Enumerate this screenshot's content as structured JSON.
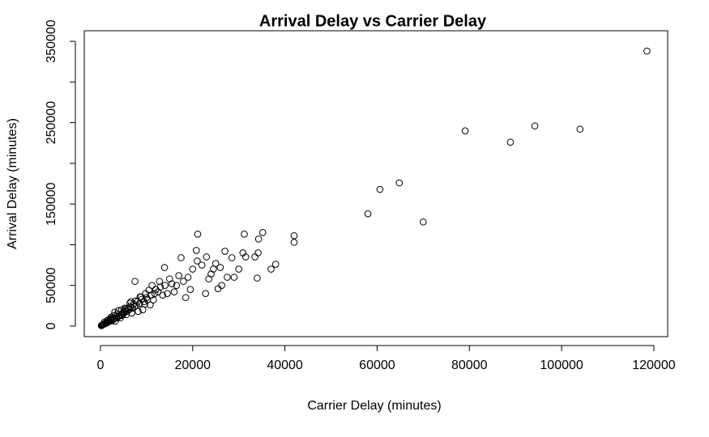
{
  "chart_data": {
    "type": "scatter",
    "title": "Arrival Delay vs Carrier Delay",
    "x_label": "Carrier Delay (minutes)",
    "y_label": "Arrival Delay (minutes)",
    "xlim": [
      -3500,
      123000
    ],
    "ylim": [
      -13000,
      363000
    ],
    "xticks": [
      0,
      20000,
      40000,
      60000,
      80000,
      100000,
      120000
    ],
    "yticks": [
      0,
      50000,
      {
        "value": 100000,
        "label": null
      },
      150000,
      {
        "value": 200000,
        "label": null
      },
      250000,
      {
        "value": 300000,
        "label": null
      },
      350000
    ],
    "color": "#000000",
    "x": [
      118500,
      104000,
      94200,
      88900,
      79100,
      70000,
      64800,
      60600,
      58000,
      42000,
      42000,
      35200,
      34300,
      31200,
      21100,
      38000,
      37000,
      34000,
      34200,
      33500,
      30900,
      31500,
      27000,
      28500,
      25000,
      23000,
      20800,
      21000,
      26300,
      22800,
      30000,
      29000,
      24000,
      17500,
      13900,
      7500,
      12000,
      19000,
      18000,
      16500,
      15000,
      14500,
      13000,
      12500,
      11000,
      10500,
      10000,
      9500,
      9000,
      8500,
      8000,
      7800,
      7200,
      7000,
      6500,
      6200,
      6000,
      5800,
      5500,
      5200,
      5000,
      4800,
      4500,
      4200,
      4000,
      3800,
      3500,
      3300,
      3000,
      2800,
      2600,
      2400,
      2200,
      2000,
      1800,
      1600,
      1400,
      1200,
      1000,
      800,
      600,
      500,
      400,
      300,
      200,
      22000,
      20000,
      19500,
      18500,
      17000,
      16000,
      15500,
      14000,
      13500,
      12800,
      11500,
      11200,
      10800,
      9800,
      9200,
      8800,
      8200,
      7600,
      6800,
      6400,
      5600,
      5300,
      4600,
      4300,
      3700,
      3200,
      2900,
      2500,
      2100,
      1700,
      1300,
      900,
      700,
      1500,
      2300,
      3100,
      3900,
      4700,
      5400,
      6600,
      7400,
      8600,
      9600,
      10200,
      11800,
      24500,
      26000,
      27500,
      23500,
      25500
    ],
    "y": [
      338000,
      242000,
      246000,
      226000,
      240000,
      128000,
      176000,
      168000,
      138000,
      111000,
      103000,
      115000,
      107000,
      113000,
      113000,
      76000,
      70000,
      59000,
      90000,
      85000,
      90000,
      85000,
      92000,
      84000,
      77000,
      85000,
      93000,
      80000,
      50000,
      40000,
      70000,
      60000,
      64000,
      84000,
      72000,
      55000,
      45000,
      60000,
      55000,
      50000,
      58000,
      40000,
      48000,
      42000,
      38000,
      44000,
      35000,
      30000,
      33000,
      28000,
      30000,
      25000,
      27000,
      22000,
      24000,
      20000,
      22000,
      18000,
      19000,
      17000,
      15000,
      16000,
      14000,
      13000,
      12000,
      11000,
      10000,
      12000,
      9000,
      8000,
      9500,
      7000,
      8000,
      6000,
      5500,
      5000,
      4000,
      3500,
      3000,
      2500,
      2000,
      1500,
      1200,
      900,
      600,
      75000,
      70000,
      45000,
      35000,
      62000,
      42000,
      52000,
      50000,
      38000,
      55000,
      32000,
      50000,
      26000,
      40000,
      20000,
      36000,
      18000,
      31000,
      16000,
      28000,
      14000,
      22000,
      20000,
      10000,
      15000,
      6000,
      13000,
      6500,
      9000,
      7500,
      4500,
      5000,
      2500,
      7000,
      11000,
      17000,
      19000,
      13000,
      21000,
      30000,
      24000,
      36000,
      27000,
      32000,
      40000,
      70000,
      72000,
      60000,
      58000,
      46000
    ]
  }
}
